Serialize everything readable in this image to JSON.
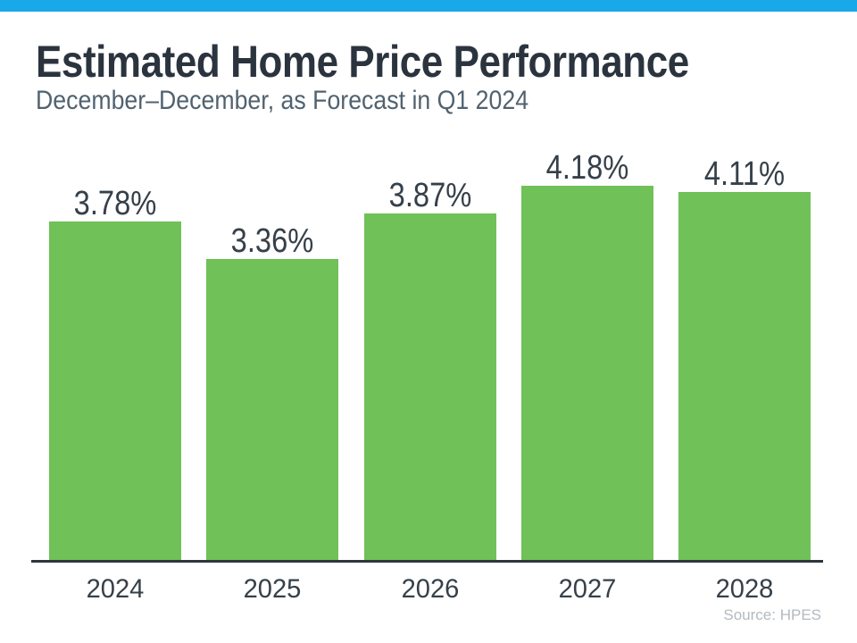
{
  "header": {
    "title": "Estimated Home Price Performance",
    "subtitle": "December–December, as Forecast in Q1 2024"
  },
  "chart_data": {
    "type": "bar",
    "title": "Estimated Home Price Performance",
    "subtitle": "December–December, as Forecast in Q1 2024",
    "categories": [
      "2024",
      "2025",
      "2026",
      "2027",
      "2028"
    ],
    "values": [
      3.78,
      3.36,
      3.87,
      4.18,
      4.11
    ],
    "value_labels": [
      "3.78%",
      "3.36%",
      "3.87%",
      "4.18%",
      "4.11%"
    ],
    "unit": "%",
    "ylim": [
      0,
      4.8
    ],
    "grid": false,
    "legend": "none",
    "bar_color": "#6FC158",
    "accent_color": "#19A8E8"
  },
  "footer": {
    "source": "Source: HPES"
  },
  "colors": {
    "topbar": "#19A8E8",
    "bar": "#6FC158",
    "title_text": "#2B343E",
    "subtitle_text": "#51626F",
    "label_text": "#36404A",
    "axis": "#2E363D",
    "source_text": "#B2BAC1"
  }
}
